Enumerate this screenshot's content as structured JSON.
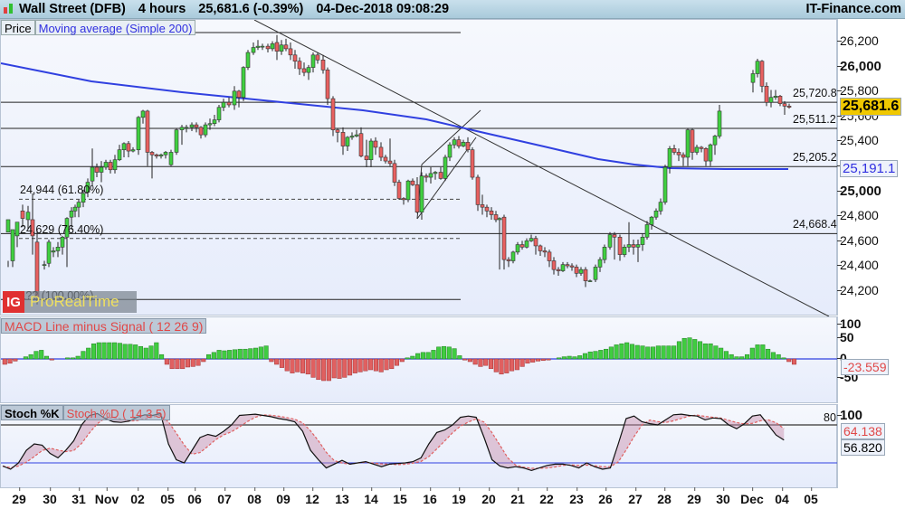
{
  "header": {
    "instrument": "Wall Street (DFB)",
    "timeframe": "4 hours",
    "last_change": "25,681.6 (-0.39%)",
    "datetime": "04-Dec-2018 09:08:29",
    "brand": "IT-Finance.com"
  },
  "price_panel": {
    "legend_price": "Price",
    "legend_ma": "Moving average (Simple 200)",
    "y_ticks": [
      "26,200",
      "26,000",
      "25,800",
      "25,600",
      "25,400",
      "25,200",
      "25,000",
      "24,800",
      "24,600",
      "24,400",
      "24,200"
    ],
    "last_price_badge": "25,681.6",
    "ma_badge": "25,191.1",
    "levels": [
      {
        "label": "25,720.8",
        "value": 25720.8
      },
      {
        "label": "25,511.2",
        "value": 25511.2
      },
      {
        "label": "25,205.2",
        "value": 25205.2
      },
      {
        "label": "24,668.4",
        "value": 24668.4
      }
    ],
    "fib_levels": [
      {
        "label": "24,944 (61.80%)",
        "value": 24944
      },
      {
        "label": "24,629 (76.40%)",
        "value": 24629
      },
      {
        "label": "24,1?? (100.00%)",
        "value": 24140
      }
    ],
    "watermark_logo": "IG",
    "watermark_text": "ProRealTime"
  },
  "macd_panel": {
    "legend": "MACD Line minus Signal ( 12 26 9)",
    "y_ticks": [
      "100",
      "50",
      "0",
      "-50"
    ],
    "value_badge": "-23.559"
  },
  "stoch_panel": {
    "legend_k": "Stoch %K",
    "legend_d": "Stoch %D ( 14 3 5)",
    "y_tick_100": "100",
    "level_80": "80",
    "d_badge": "64.138",
    "k_badge": "56.820"
  },
  "x_axis": {
    "labels": [
      "29",
      "30",
      "31",
      "Nov",
      "02",
      "05",
      "06",
      "07",
      "08",
      "09",
      "12",
      "13",
      "14",
      "15",
      "16",
      "19",
      "20",
      "21",
      "22",
      "23",
      "26",
      "27",
      "28",
      "29",
      "30",
      "Dec",
      "04",
      "05"
    ]
  },
  "chart_data": [
    {
      "type": "candlestick",
      "title": "Wall Street (DFB) 4 hours",
      "ylabel": "Price",
      "ylim": [
        24100,
        26300
      ],
      "x": [
        "Oct 29",
        "Oct 30",
        "Oct 31",
        "Nov 01",
        "Nov 02",
        "Nov 05",
        "Nov 06",
        "Nov 07",
        "Nov 08",
        "Nov 09",
        "Nov 12",
        "Nov 13",
        "Nov 14",
        "Nov 15",
        "Nov 16",
        "Nov 19",
        "Nov 20",
        "Nov 21",
        "Nov 22",
        "Nov 23",
        "Nov 26",
        "Nov 27",
        "Nov 28",
        "Nov 29",
        "Nov 30",
        "Dec 03",
        "Dec 04"
      ],
      "close_approx": [
        24600,
        24850,
        25050,
        25250,
        25200,
        25450,
        25700,
        26150,
        26200,
        25950,
        25450,
        25300,
        25200,
        24900,
        25350,
        25450,
        24800,
        24450,
        24400,
        24300,
        24450,
        24700,
        25050,
        25300,
        25250,
        25950,
        25681.6
      ],
      "series": [
        {
          "name": "Moving average (Simple 200)",
          "start": 25980,
          "end": 25191.1
        }
      ],
      "horizontal_levels": [
        26280,
        25720.8,
        25511.2,
        25205.2,
        24668.4,
        24944,
        24629,
        24140
      ],
      "last_price": 25681.6
    },
    {
      "type": "bar",
      "title": "MACD Line minus Signal ( 12 26 9)",
      "ylim": [
        -75,
        110
      ],
      "last_value": -23.559,
      "phases": [
        {
          "period": "Oct 29",
          "sign": "negative",
          "min": -20
        },
        {
          "period": "Oct 30 - Nov 12",
          "sign": "positive",
          "max": 70
        },
        {
          "period": "Nov 13 - Nov 15",
          "sign": "negative",
          "min": -90
        },
        {
          "period": "Nov 16 - Nov 19",
          "sign": "positive",
          "max": 45
        },
        {
          "period": "Nov 20 - Nov 23",
          "sign": "negative",
          "min": -60
        },
        {
          "period": "Nov 26 - Dec 04",
          "sign": "positive",
          "max": 78
        },
        {
          "period": "Dec 04",
          "sign": "negative",
          "last": -23.559
        }
      ]
    },
    {
      "type": "line",
      "title": "Stochastic",
      "series": [
        {
          "name": "Stoch %K",
          "last": 56.82
        },
        {
          "name": "Stoch %D ( 14 3 5)",
          "last": 64.138
        }
      ],
      "ylim": [
        0,
        100
      ],
      "levels": [
        80,
        20
      ]
    }
  ]
}
